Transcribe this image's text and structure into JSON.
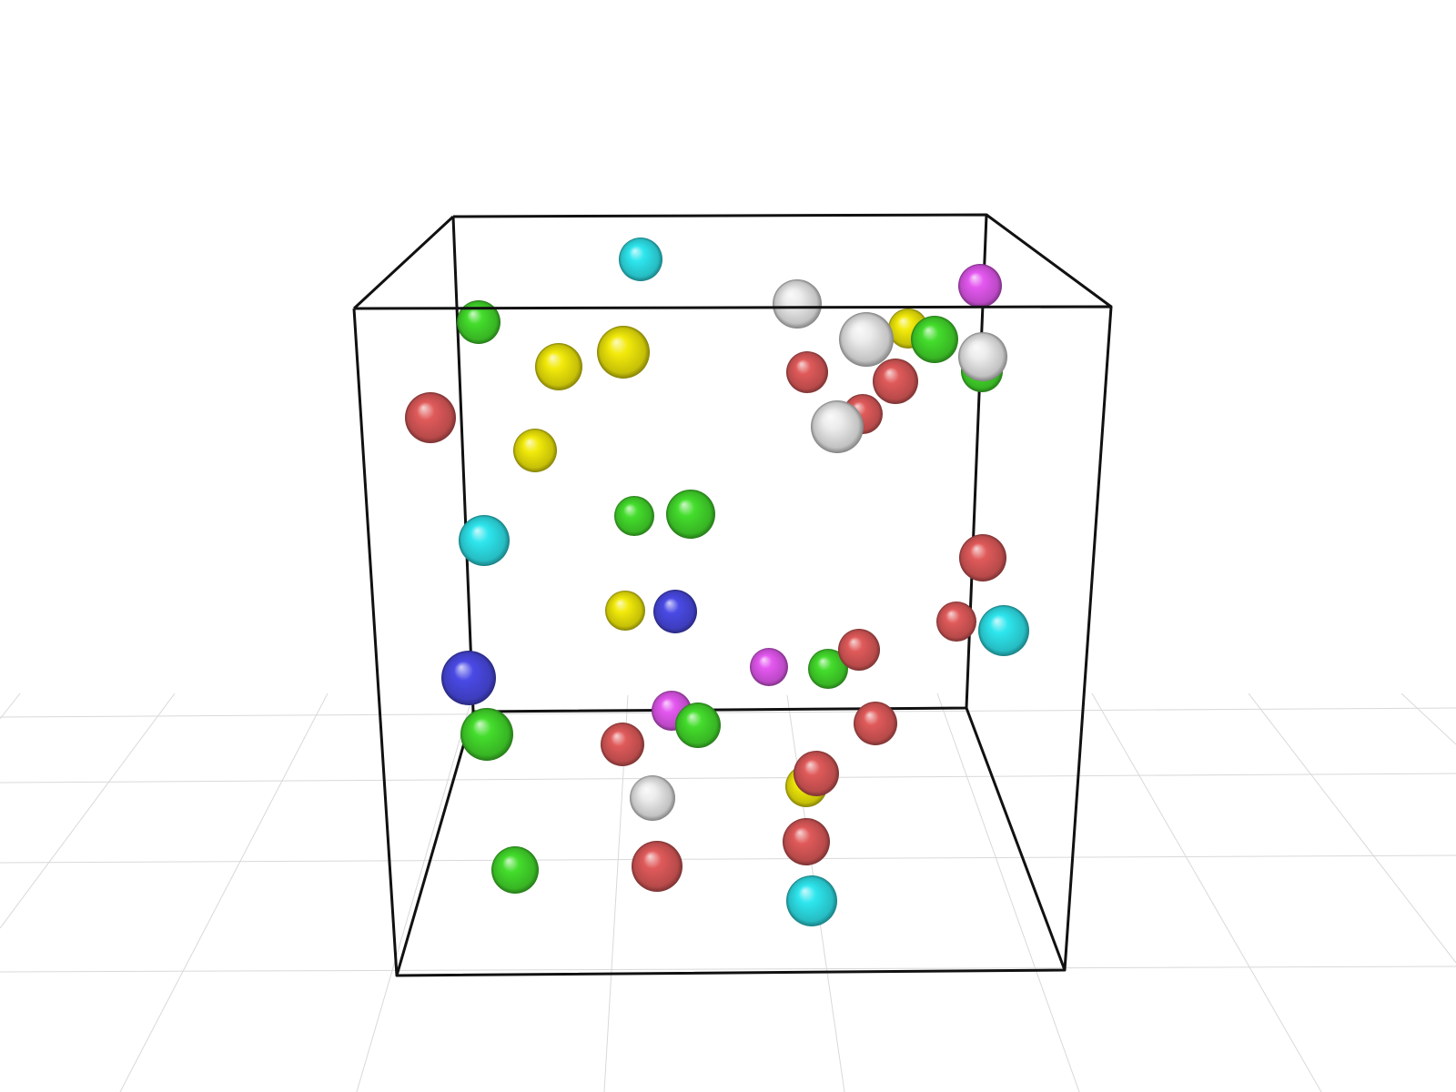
{
  "scene": {
    "background": "#ffffff",
    "floor_grid_color": "#d9d9d9",
    "box_edge_color": "#111111"
  },
  "palette": {
    "red": "#e05a5a",
    "green": "#44dd2c",
    "yellow": "#f2ea0a",
    "cyan": "#2ee6ee",
    "white": "#ececec",
    "magenta": "#e458f0",
    "blue": "#4a4ae6"
  },
  "spheres": [
    {
      "color": "cyan",
      "layer": 1
    },
    {
      "color": "white",
      "layer": 1
    },
    {
      "color": "magenta",
      "layer": 1
    },
    {
      "color": "green",
      "layer": 1
    },
    {
      "color": "yellow",
      "layer": 1
    },
    {
      "color": "yellow",
      "layer": 1
    },
    {
      "color": "red",
      "layer": 1
    },
    {
      "color": "red",
      "layer": 1
    },
    {
      "color": "yellow",
      "layer": 1
    },
    {
      "color": "white",
      "layer": 2
    },
    {
      "color": "green",
      "layer": 2
    },
    {
      "color": "red",
      "layer": 1
    },
    {
      "color": "green",
      "layer": 1
    },
    {
      "color": "white",
      "layer": 2
    },
    {
      "color": "red",
      "layer": 1
    },
    {
      "color": "white",
      "layer": 2
    },
    {
      "color": "yellow",
      "layer": 1
    },
    {
      "color": "green",
      "layer": 1
    },
    {
      "color": "green",
      "layer": 1
    },
    {
      "color": "cyan",
      "layer": 1
    },
    {
      "color": "red",
      "layer": 1
    },
    {
      "color": "yellow",
      "layer": 1
    },
    {
      "color": "blue",
      "layer": 1
    },
    {
      "color": "red",
      "layer": 1
    },
    {
      "color": "cyan",
      "layer": 2
    },
    {
      "color": "magenta",
      "layer": 1
    },
    {
      "color": "green",
      "layer": 1
    },
    {
      "color": "red",
      "layer": 1
    },
    {
      "color": "blue",
      "layer": 1
    },
    {
      "color": "magenta",
      "layer": 1
    },
    {
      "color": "green",
      "layer": 1
    },
    {
      "color": "green",
      "layer": 1
    },
    {
      "color": "red",
      "layer": 1
    },
    {
      "color": "red",
      "layer": 1
    },
    {
      "color": "yellow",
      "layer": 1
    },
    {
      "color": "red",
      "layer": 2
    },
    {
      "color": "white",
      "layer": 1
    },
    {
      "color": "red",
      "layer": 1
    },
    {
      "color": "green",
      "layer": 1
    },
    {
      "color": "red",
      "layer": 1
    },
    {
      "color": "cyan",
      "layer": 1
    }
  ]
}
